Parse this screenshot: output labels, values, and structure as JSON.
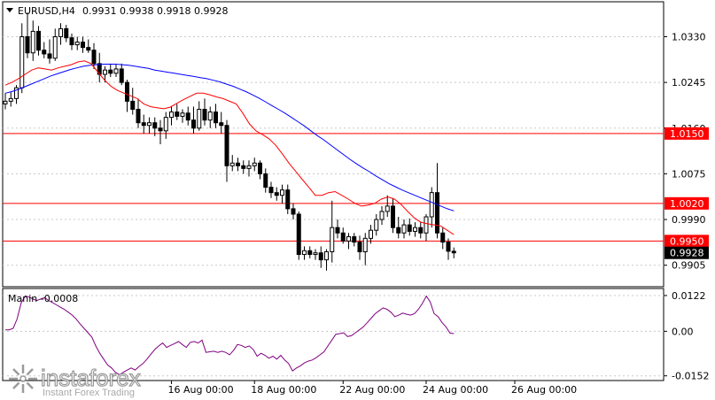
{
  "header": {
    "symbol": "EURUSD,H4",
    "ohlc": "0.9931 0.9938 0.9918 0.9928"
  },
  "indicator": {
    "label": "Manin -0.0008"
  },
  "watermark": {
    "brand": "instaforex",
    "tagline": "Instant Forex Trading"
  },
  "colors": {
    "background": "#ffffff",
    "candle": "#000000",
    "ma_slow": "#0000ff",
    "ma_fast": "#ff0000",
    "level": "#ff0000",
    "oscillator": "#800080",
    "grid": "#c8c8c8"
  },
  "chart_data": [
    {
      "type": "candlestick",
      "symbol": "EURUSD",
      "timeframe": "H4",
      "ylim": [
        0.9865,
        1.0395
      ],
      "y_ticks": [
        "1.0330",
        "1.0245",
        "1.0160",
        "1.0075",
        "0.9990",
        "0.9905"
      ],
      "x_ticks": [
        "16 Aug 00:00",
        "18 Aug 00:00",
        "22 Aug 00:00",
        "24 Aug 00:00",
        "26 Aug 00:00"
      ],
      "levels": [
        {
          "value": 1.015,
          "label": "1.0150"
        },
        {
          "value": 1.002,
          "label": "1.0020"
        },
        {
          "value": 0.995,
          "label": "0.9950"
        }
      ],
      "current_price": {
        "value": 0.9928,
        "label": "0.9928"
      },
      "candles": [
        [
          1.0205,
          1.0225,
          1.0195,
          1.021
        ],
        [
          1.021,
          1.0228,
          1.02,
          1.0215
        ],
        [
          1.0215,
          1.024,
          1.0205,
          1.0235
        ],
        [
          1.0235,
          1.0355,
          1.0225,
          1.033
        ],
        [
          1.033,
          1.0375,
          1.029,
          1.03
        ],
        [
          1.03,
          1.036,
          1.0285,
          1.034
        ],
        [
          1.034,
          1.035,
          1.0295,
          1.0305
        ],
        [
          1.0305,
          1.032,
          1.029,
          1.0298
        ],
        [
          1.0298,
          1.0325,
          1.028,
          1.029
        ],
        [
          1.029,
          1.0345,
          1.0285,
          1.033
        ],
        [
          1.033,
          1.0355,
          1.0315,
          1.0345
        ],
        [
          1.0345,
          1.0352,
          1.032,
          1.0328
        ],
        [
          1.0328,
          1.0336,
          1.0305,
          1.0315
        ],
        [
          1.0315,
          1.033,
          1.0305,
          1.032
        ],
        [
          1.032,
          1.033,
          1.03,
          1.031
        ],
        [
          1.031,
          1.0325,
          1.03,
          1.0305
        ],
        [
          1.0305,
          1.0318,
          1.027,
          1.028
        ],
        [
          1.028,
          1.03,
          1.0245,
          1.026
        ],
        [
          1.026,
          1.0275,
          1.0245,
          1.0268
        ],
        [
          1.0268,
          1.028,
          1.0255,
          1.0262
        ],
        [
          1.0262,
          1.0278,
          1.0255,
          1.027
        ],
        [
          1.027,
          1.028,
          1.024,
          1.0245
        ],
        [
          1.0245,
          1.025,
          1.019,
          1.021
        ],
        [
          1.021,
          1.0235,
          1.0185,
          1.0195
        ],
        [
          1.0195,
          1.0215,
          1.016,
          1.017
        ],
        [
          1.017,
          1.0185,
          1.015,
          1.0165
        ],
        [
          1.0165,
          1.018,
          1.015,
          1.017
        ],
        [
          1.017,
          1.018,
          1.0145,
          1.016
        ],
        [
          1.016,
          1.0175,
          1.013,
          1.0155
        ],
        [
          1.0155,
          1.019,
          1.014,
          1.018
        ],
        [
          1.018,
          1.02,
          1.0165,
          1.019
        ],
        [
          1.019,
          1.0205,
          1.0175,
          1.0182
        ],
        [
          1.0182,
          1.0195,
          1.017,
          1.0188
        ],
        [
          1.0188,
          1.02,
          1.0165,
          1.0175
        ],
        [
          1.0175,
          1.02,
          1.015,
          1.016
        ],
        [
          1.016,
          1.021,
          1.0155,
          1.0195
        ],
        [
          1.0195,
          1.0215,
          1.0165,
          1.0175
        ],
        [
          1.0175,
          1.02,
          1.016,
          1.019
        ],
        [
          1.019,
          1.0205,
          1.016,
          1.017
        ],
        [
          1.017,
          1.019,
          1.015,
          1.0165
        ],
        [
          1.0165,
          1.0175,
          1.006,
          1.009
        ],
        [
          1.009,
          1.011,
          1.008,
          1.0095
        ],
        [
          1.0095,
          1.0105,
          1.008,
          1.009
        ],
        [
          1.009,
          1.01,
          1.0075,
          1.0085
        ],
        [
          1.0085,
          1.01,
          1.007,
          1.009
        ],
        [
          1.009,
          1.0105,
          1.008,
          1.0095
        ],
        [
          1.0095,
          1.01,
          1.0065,
          1.0075
        ],
        [
          1.0075,
          1.0085,
          1.004,
          1.005
        ],
        [
          1.005,
          1.006,
          1.003,
          1.004
        ],
        [
          1.004,
          1.005,
          1.0025,
          1.0035
        ],
        [
          1.0035,
          1.0055,
          1.002,
          1.0045
        ],
        [
          1.0045,
          1.0055,
          1.0,
          1.001
        ],
        [
          1.001,
          1.002,
          0.999,
          1.0
        ],
        [
          1.0,
          1.0005,
          0.9915,
          0.9925
        ],
        [
          0.9925,
          0.994,
          0.9915,
          0.9932
        ],
        [
          0.9932,
          0.994,
          0.9918,
          0.9925
        ],
        [
          0.9925,
          0.9935,
          0.9915,
          0.9928
        ],
        [
          0.9928,
          0.994,
          0.99,
          0.9915
        ],
        [
          0.9915,
          0.9935,
          0.9895,
          0.993
        ],
        [
          0.993,
          1.0025,
          0.991,
          0.9975
        ],
        [
          0.9975,
          0.999,
          0.9955,
          0.9965
        ],
        [
          0.9965,
          0.9975,
          0.9945,
          0.995
        ],
        [
          0.995,
          0.9965,
          0.9935,
          0.9958
        ],
        [
          0.9958,
          0.9965,
          0.994,
          0.9948
        ],
        [
          0.9948,
          0.996,
          0.9915,
          0.993
        ],
        [
          0.993,
          0.9965,
          0.9905,
          0.9955
        ],
        [
          0.9955,
          0.998,
          0.9945,
          0.997
        ],
        [
          0.997,
          1.0,
          0.996,
          0.999
        ],
        [
          0.999,
          1.0015,
          0.998,
          1.0005
        ],
        [
          1.0005,
          1.0035,
          0.9995,
          1.0015
        ],
        [
          1.0015,
          1.003,
          0.9965,
          0.9975
        ],
        [
          0.9975,
          0.9995,
          0.9955,
          0.9965
        ],
        [
          0.9965,
          0.999,
          0.9955,
          0.998
        ],
        [
          0.998,
          0.9992,
          0.996,
          0.9968
        ],
        [
          0.9968,
          0.9985,
          0.9958,
          0.9975
        ],
        [
          0.9975,
          0.9985,
          0.9955,
          0.9965
        ],
        [
          0.9965,
          1.0,
          0.995,
          0.9995
        ],
        [
          0.9995,
          1.005,
          0.9975,
          1.004
        ],
        [
          1.004,
          1.0095,
          0.9955,
          0.9965
        ],
        [
          0.9965,
          0.9975,
          0.9935,
          0.9948
        ],
        [
          0.9948,
          0.9955,
          0.9915,
          0.9931
        ],
        [
          0.9931,
          0.9938,
          0.9918,
          0.9928
        ]
      ],
      "ma_slow": [
        1.0225,
        1.0228,
        1.0232,
        1.0237,
        1.0242,
        1.0247,
        1.0252,
        1.0257,
        1.0261,
        1.0265,
        1.0269,
        1.0272,
        1.0275,
        1.0277,
        1.0278,
        1.0279,
        1.0279,
        1.0279,
        1.0278,
        1.0277,
        1.0275,
        1.0273,
        1.0271,
        1.0268,
        1.0266,
        1.0264,
        1.0262,
        1.026,
        1.0258,
        1.0256,
        1.0254,
        1.0252,
        1.0249,
        1.0246,
        1.0242,
        1.0238,
        1.0233,
        1.0228,
        1.0222,
        1.0216,
        1.0209,
        1.0202,
        1.0195,
        1.0188,
        1.018,
        1.0172,
        1.0164,
        1.0155,
        1.0146,
        1.0138,
        1.0129,
        1.012,
        1.0111,
        1.0102,
        1.0094,
        1.0086,
        1.0079,
        1.0071,
        1.0064,
        1.0057,
        1.0051,
        1.0045,
        1.004,
        1.0035,
        1.003,
        1.0025,
        1.002,
        1.0015,
        1.001,
        1.0006
      ],
      "ma_fast": [
        1.024,
        1.0245,
        1.0252,
        1.026,
        1.0268,
        1.0272,
        1.027,
        1.0268,
        1.0272,
        1.0275,
        1.0278,
        1.0283,
        1.0285,
        1.028,
        1.0265,
        1.025,
        1.0238,
        1.023,
        1.0225,
        1.022,
        1.0215,
        1.0205,
        1.02,
        1.0198,
        1.0196,
        1.0199,
        1.0206,
        1.0213,
        1.0219,
        1.0225,
        1.0225,
        1.0222,
        1.0218,
        1.0215,
        1.021,
        1.0205,
        1.0188,
        1.0168,
        1.0155,
        1.0148,
        1.014,
        1.0128,
        1.0112,
        1.0095,
        1.008,
        1.0065,
        1.005,
        1.0035,
        1.0035,
        1.004,
        1.0042,
        1.0035,
        1.0028,
        1.002,
        1.0015,
        1.0017,
        1.002,
        1.0028,
        1.0032,
        1.0028,
        1.0018,
        1.0005,
        0.9993,
        0.9985,
        0.9982,
        0.998,
        0.9978,
        0.997,
        0.9962
      ]
    },
    {
      "type": "line",
      "name": "Manin",
      "ylim": [
        -0.0168,
        0.0146
      ],
      "y_ticks": [
        "0.0122",
        "0.00",
        "-0.0152"
      ],
      "values": [
        0.0005,
        0.0005,
        0.001,
        0.0042,
        0.0096,
        0.012,
        0.0118,
        0.011,
        0.0105,
        0.011,
        0.0115,
        0.0105,
        0.0098,
        0.009,
        0.0082,
        0.0075,
        0.0065,
        0.0055,
        0.0042,
        0.0025,
        0.001,
        -0.0005,
        -0.002,
        -0.005,
        -0.0075,
        -0.0095,
        -0.0115,
        -0.0125,
        -0.014,
        -0.0148,
        -0.014,
        -0.0132,
        -0.0125,
        -0.0132,
        -0.012,
        -0.011,
        -0.0095,
        -0.0078,
        -0.0062,
        -0.005,
        -0.004,
        -0.0055,
        -0.0048,
        -0.0042,
        -0.0035,
        -0.0045,
        -0.0055,
        -0.0038,
        -0.0035,
        -0.004,
        -0.003,
        -0.0072,
        -0.007,
        -0.0068,
        -0.0072,
        -0.0068,
        -0.0072,
        -0.008,
        -0.0065,
        -0.0045,
        -0.0048,
        -0.0055,
        -0.005,
        -0.0062,
        -0.0085,
        -0.0075,
        -0.0082,
        -0.0092,
        -0.0085,
        -0.0095,
        -0.0082,
        -0.0098,
        -0.011,
        -0.0135,
        -0.0125,
        -0.0118,
        -0.0108,
        -0.0102,
        -0.0098,
        -0.009,
        -0.008,
        -0.007,
        -0.005,
        -0.003,
        -0.001,
        -0.0008,
        -0.0005,
        -0.0018,
        -0.0015,
        -0.0005,
        0.0005,
        0.0015,
        0.003,
        0.0045,
        0.006,
        0.007,
        0.008,
        0.0075,
        0.0065,
        0.005,
        0.0055,
        0.0062,
        0.0058,
        0.0055,
        0.006,
        0.0075,
        0.0095,
        0.012,
        0.01,
        0.006,
        0.005,
        0.003,
        0.0015,
        -0.0006,
        -0.0008
      ]
    }
  ]
}
